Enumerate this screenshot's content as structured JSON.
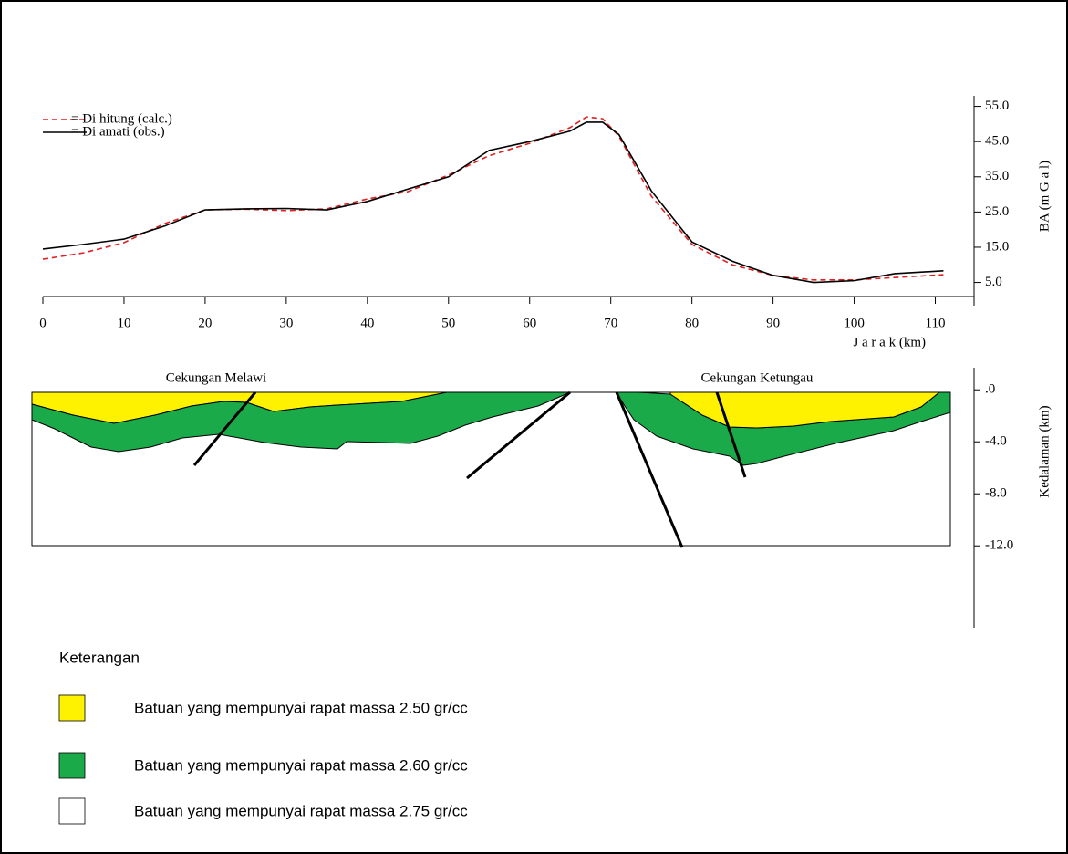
{
  "chart_data": [
    {
      "type": "line",
      "x": [
        0,
        5,
        10,
        15,
        20,
        25,
        30,
        35,
        40,
        45,
        50,
        55,
        60,
        65,
        67,
        69,
        71,
        75,
        80,
        85,
        90,
        95,
        100,
        105,
        111
      ],
      "series": [
        {
          "name": "= Di hitung (calc.)",
          "color": "#e02020",
          "style": "dashed",
          "values": [
            11.6,
            13.4,
            16.3,
            21.7,
            25.6,
            25.8,
            25.4,
            25.9,
            28.7,
            30.8,
            35.5,
            41,
            44.5,
            49,
            52,
            51.5,
            46.5,
            29.5,
            15.8,
            10,
            7,
            5.7,
            5.7,
            6.4,
            7.2
          ]
        },
        {
          "name": "= Di amati (obs.)",
          "color": "#000000",
          "style": "solid",
          "values": [
            14.5,
            15.8,
            17.3,
            21,
            25.6,
            25.9,
            26,
            25.6,
            28,
            31.5,
            35,
            42.5,
            45,
            48,
            50.5,
            50.5,
            47,
            31,
            16.5,
            11,
            7,
            5,
            5.5,
            7.5,
            8.3
          ]
        }
      ],
      "xlim": [
        0,
        115
      ],
      "xticks": [
        0,
        10,
        20,
        30,
        40,
        50,
        60,
        70,
        80,
        90,
        100,
        110
      ],
      "ylim": [
        1,
        58
      ],
      "yticks": [
        {
          "value": 5,
          "label": "5.0"
        },
        {
          "value": 15,
          "label": "15.0"
        },
        {
          "value": 25,
          "label": "25.0"
        },
        {
          "value": 35,
          "label": "35.0"
        },
        {
          "value": 45,
          "label": "45.0"
        },
        {
          "value": 55,
          "label": "55.0"
        }
      ],
      "xlabel": "J a r a k (km)",
      "ylabel": "BA (m G a l)"
    },
    {
      "type": "section",
      "annotations": [
        "Cekungan Melawi",
        "Cekungan Ketungau"
      ],
      "ylim": [
        -18.3,
        1.7
      ],
      "yticks": [
        {
          "value": 0,
          "label": ".0"
        },
        {
          "value": -4,
          "label": "-4.0"
        },
        {
          "value": -8,
          "label": "-8.0"
        },
        {
          "value": -12,
          "label": "-12.0"
        }
      ],
      "ylabel": "Kedalaman (km)"
    }
  ],
  "legend": {
    "title": "Keterangan",
    "items": [
      {
        "label": "Batuan yang mempunyai rapat massa 2.50 gr/cc",
        "color": "#fff200"
      },
      {
        "label": "Batuan yang mempunyai rapat massa 2.60 gr/cc",
        "color": "#1aaa4a"
      },
      {
        "label": "Batuan yang mempunyai rapat massa 2.75 gr/cc",
        "color": "#ffffff"
      }
    ]
  }
}
